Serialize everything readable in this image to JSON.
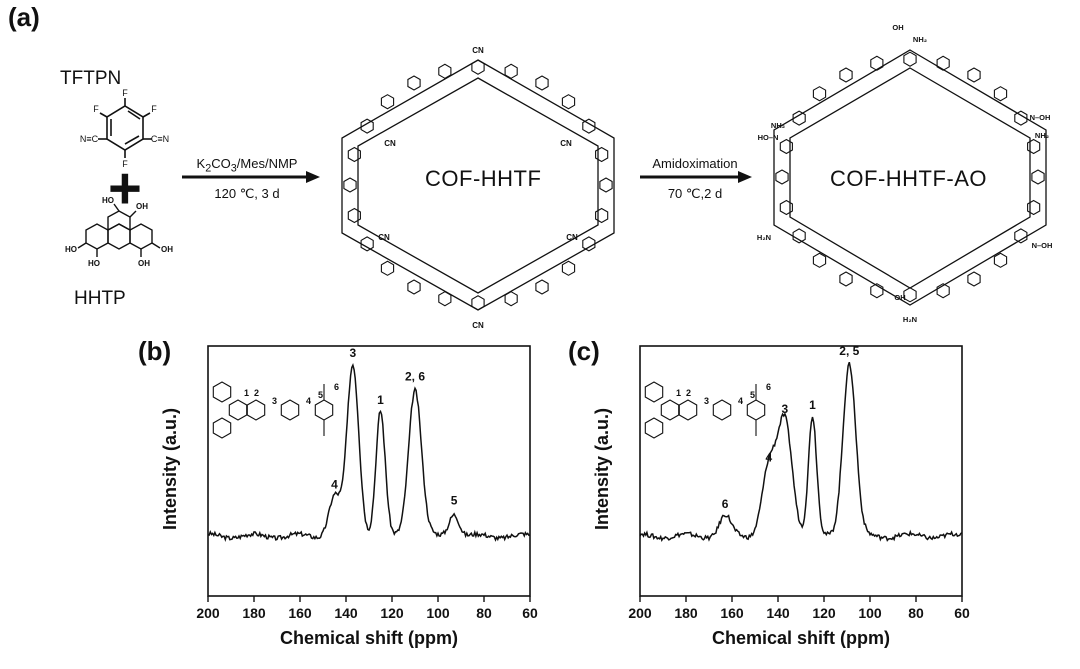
{
  "panel_a": {
    "label": "(a)",
    "reactant1": "TFTPN",
    "reactant2": "HHTP",
    "plus": "+",
    "arrow1_top": "K2CO3/Mes/NMP",
    "arrow1_bottom": "120 ℃, 3 d",
    "product1": "COF-HHTF",
    "arrow2_top": "Amidoximation",
    "arrow2_bottom": "70 ℃,2 d",
    "product2": "COF-HHTF-AO"
  },
  "colors": {
    "line": "#111111",
    "background": "#ffffff"
  },
  "chart_data": [
    {
      "panel": "(b)",
      "type": "line",
      "xlabel": "Chemical shift (ppm)",
      "ylabel": "Intensity (a.u.)",
      "xlim": [
        200,
        60
      ],
      "xticks": [
        200,
        180,
        160,
        140,
        120,
        100,
        80,
        60
      ],
      "x_reversed": true,
      "peaks": [
        {
          "label": "4",
          "x": 145,
          "height": 0.22,
          "width": 2.5
        },
        {
          "label": "3",
          "x": 137,
          "height": 0.95,
          "width": 2.6
        },
        {
          "label": "1",
          "x": 125,
          "height": 0.69,
          "width": 2.0
        },
        {
          "label": "2, 6",
          "x": 110,
          "height": 0.82,
          "width": 2.8
        },
        {
          "label": "5",
          "x": 93,
          "height": 0.13,
          "width": 2.2
        }
      ],
      "inset_labels": [
        "1",
        "2",
        "3",
        "4",
        "5",
        "6"
      ]
    },
    {
      "panel": "(c)",
      "type": "line",
      "xlabel": "Chemical shift (ppm)",
      "ylabel": "Intensity (a.u.)",
      "xlim": [
        200,
        60
      ],
      "xticks": [
        200,
        180,
        160,
        140,
        120,
        100,
        80,
        60
      ],
      "x_reversed": true,
      "peaks": [
        {
          "label": "6",
          "x": 163,
          "height": 0.11,
          "width": 2.5
        },
        {
          "label": "4",
          "x": 144,
          "height": 0.37,
          "width": 3.0
        },
        {
          "label": "3",
          "x": 137,
          "height": 0.64,
          "width": 3.2
        },
        {
          "label": "1",
          "x": 125,
          "height": 0.66,
          "width": 1.8
        },
        {
          "label": "2, 5",
          "x": 109,
          "height": 0.96,
          "width": 2.8
        }
      ],
      "inset_labels": [
        "1",
        "2",
        "3",
        "4",
        "5",
        "6"
      ]
    }
  ]
}
